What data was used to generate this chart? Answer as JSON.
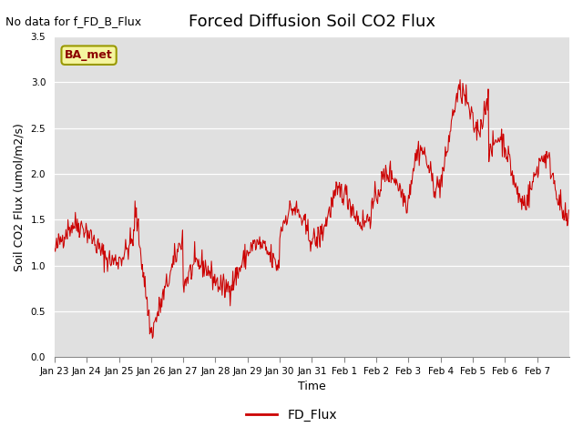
{
  "title": "Forced Diffusion Soil CO2 Flux",
  "no_data_label": "No data for f_FD_B_Flux",
  "ba_met_label": "BA_met",
  "xlabel": "Time",
  "ylabel": "Soil CO2 Flux (umol/m2/s)",
  "legend_label": "FD_Flux",
  "ylim": [
    0.0,
    3.5
  ],
  "yticks": [
    0.0,
    0.5,
    1.0,
    1.5,
    2.0,
    2.5,
    3.0,
    3.5
  ],
  "line_color": "#cc0000",
  "background_color": "#e0e0e0",
  "title_fontsize": 13,
  "label_fontsize": 9,
  "tick_fontsize": 7.5,
  "no_data_fontsize": 9,
  "ba_met_fontsize": 9,
  "tick_labels": [
    "Jan 23",
    "Jan 24",
    "Jan 25",
    "Jan 26",
    "Jan 27",
    "Jan 28",
    "Jan 29",
    "Jan 30",
    "Jan 31",
    "Feb 1",
    "Feb 2",
    "Feb 3",
    "Feb 4",
    "Feb 5",
    "Feb 6",
    "Feb 7"
  ],
  "tick_positions": [
    0,
    1,
    2,
    3,
    4,
    5,
    6,
    7,
    8,
    9,
    10,
    11,
    12,
    13,
    14,
    15
  ]
}
